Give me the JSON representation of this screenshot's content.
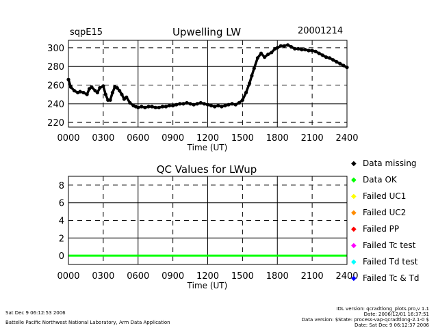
{
  "header": {
    "site": "sqpE15",
    "date": "20001214"
  },
  "chart_data": [
    {
      "type": "scatter",
      "title": "Upwelling LW",
      "xlabel": "Time (UT)",
      "ylabel": "",
      "x_ticks": [
        "0000",
        "0300",
        "0600",
        "0900",
        "1200",
        "1500",
        "1800",
        "2100",
        "2400"
      ],
      "y_ticks": [
        220,
        240,
        260,
        280,
        300
      ],
      "xlim": [
        0,
        24
      ],
      "ylim": [
        215,
        308
      ],
      "color": "#000000",
      "x": [
        0.0,
        0.2,
        0.5,
        0.8,
        1.0,
        1.3,
        1.6,
        1.8,
        2.0,
        2.3,
        2.5,
        2.7,
        3.0,
        3.2,
        3.4,
        3.6,
        3.8,
        4.0,
        4.2,
        4.4,
        4.6,
        4.8,
        5.0,
        5.3,
        5.6,
        5.8,
        6.0,
        6.3,
        6.6,
        6.9,
        7.2,
        7.5,
        7.8,
        8.1,
        8.4,
        8.7,
        9.0,
        9.3,
        9.6,
        9.9,
        10.2,
        10.5,
        10.8,
        11.1,
        11.4,
        11.7,
        12.0,
        12.3,
        12.6,
        12.9,
        13.2,
        13.5,
        13.8,
        14.1,
        14.4,
        14.7,
        15.0,
        15.3,
        15.6,
        15.8,
        16.0,
        16.3,
        16.6,
        16.9,
        17.2,
        17.5,
        17.8,
        18.0,
        18.3,
        18.6,
        18.9,
        19.2,
        19.5,
        19.8,
        20.1,
        20.4,
        20.7,
        21.0,
        21.3,
        21.6,
        21.9,
        22.2,
        22.5,
        22.8,
        23.1,
        23.4,
        23.7,
        24.0
      ],
      "y": [
        266,
        258,
        254,
        252,
        253,
        252,
        250,
        256,
        258,
        254,
        252,
        257,
        259,
        250,
        244,
        244,
        252,
        258,
        257,
        254,
        250,
        245,
        247,
        241,
        238,
        237,
        236,
        237,
        236,
        237,
        237,
        236,
        236,
        237,
        237,
        238,
        238,
        239,
        240,
        240,
        241,
        240,
        239,
        240,
        241,
        240,
        239,
        238,
        237,
        238,
        237,
        238,
        239,
        240,
        239,
        241,
        244,
        252,
        262,
        270,
        278,
        289,
        294,
        290,
        293,
        295,
        299,
        300,
        302,
        302,
        303,
        301,
        299,
        299,
        298,
        298,
        297,
        297,
        296,
        294,
        292,
        290,
        289,
        287,
        285,
        283,
        281,
        279
      ]
    },
    {
      "type": "line",
      "title": "QC Values for LWup",
      "xlabel": "Time (UT)",
      "ylabel": "",
      "x_ticks": [
        "0000",
        "0300",
        "0600",
        "0900",
        "1200",
        "1500",
        "1800",
        "2100",
        "2400"
      ],
      "y_ticks": [
        0,
        2,
        4,
        6,
        8
      ],
      "xlim": [
        0,
        24
      ],
      "ylim": [
        -1,
        9
      ],
      "color": "#00ff00",
      "x": [
        0,
        24
      ],
      "y": [
        0,
        0
      ]
    }
  ],
  "legend": [
    {
      "label": "Data missing",
      "color": "#000000"
    },
    {
      "label": "Data OK",
      "color": "#00ff00"
    },
    {
      "label": "Failed UC1",
      "color": "#ffff00"
    },
    {
      "label": "Failed UC2",
      "color": "#ff8c00"
    },
    {
      "label": "Failed PP",
      "color": "#ff0000"
    },
    {
      "label": "Failed Tc test",
      "color": "#ff00ff"
    },
    {
      "label": "Failed Td test",
      "color": "#00ffff"
    },
    {
      "label": "Failed Tc & Td",
      "color": "#0000ff"
    }
  ],
  "footer": {
    "left_date": "Sat Dec  9 06:12:53 2006",
    "left_org": "Battelle Pacific Northwest National Laboratory, Arm Data Application",
    "right_1": "IDL version: qcradtlong_plots.pro,v 1.1",
    "right_2": "Date: 2006/12/01 16:37:51",
    "right_3": "Data version: $State: process-vap-qcradtlong-2.1-0 $",
    "right_4": "Date: Sat Dec  9 06:12:37 2006"
  }
}
